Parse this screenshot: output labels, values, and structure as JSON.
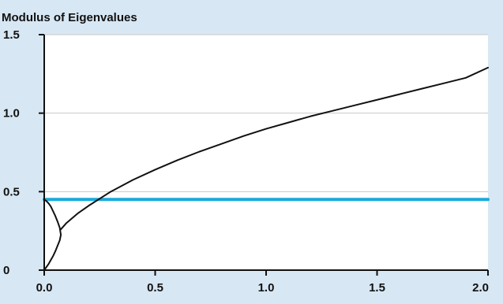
{
  "chart_data": {
    "type": "line",
    "title": "Modulus of Eigenvalues",
    "xlabel": "",
    "ylabel": "",
    "xlim": [
      0,
      2
    ],
    "ylim": [
      0,
      1.5
    ],
    "x_ticks": [
      {
        "value": 0,
        "label": "0.0"
      },
      {
        "value": 0.5,
        "label": "0.5"
      },
      {
        "value": 1.0,
        "label": "1.0"
      },
      {
        "value": 1.5,
        "label": "1.5"
      },
      {
        "value": 2.0,
        "label": "2.0"
      }
    ],
    "y_ticks": [
      {
        "value": 0,
        "label": "0"
      },
      {
        "value": 0.5,
        "label": "0.5"
      },
      {
        "value": 1.0,
        "label": "1.0"
      },
      {
        "value": 1.5,
        "label": "1.5"
      }
    ],
    "grid": {
      "horizontal": true,
      "vertical": false
    },
    "legend": "none",
    "colors": {
      "background": "#d7e7f4",
      "plot_area": "#ffffff",
      "curve": "#111111",
      "reference_line": "#1aa9db",
      "grid": "#c8c8c8"
    },
    "series": [
      {
        "color": "#1aa9db",
        "x": [
          0,
          2
        ],
        "y": [
          0.45,
          0.45
        ]
      },
      {
        "color": "#111111",
        "x": [
          0,
          0.01,
          0.02,
          0.03,
          0.04,
          0.05,
          0.06,
          0.07,
          0.075,
          0.07,
          0.06,
          0.05,
          0.04,
          0.03,
          0.02,
          0.01,
          0
        ],
        "y": [
          0.45,
          0.44,
          0.425,
          0.405,
          0.375,
          0.345,
          0.31,
          0.27,
          0.225,
          0.19,
          0.155,
          0.12,
          0.09,
          0.065,
          0.04,
          0.02,
          0
        ]
      },
      {
        "color": "#111111",
        "x": [
          0.075,
          0.1,
          0.15,
          0.2,
          0.25,
          0.3,
          0.4,
          0.5,
          0.6,
          0.7,
          0.8,
          0.9,
          1.0,
          1.1,
          1.2,
          1.3,
          1.4,
          1.5,
          1.6,
          1.7,
          1.8,
          1.9,
          2.0
        ],
        "y": [
          0.26,
          0.3,
          0.36,
          0.41,
          0.455,
          0.5,
          0.575,
          0.64,
          0.7,
          0.755,
          0.805,
          0.855,
          0.9,
          0.94,
          0.98,
          1.015,
          1.05,
          1.085,
          1.12,
          1.155,
          1.19,
          1.225,
          1.29
        ]
      }
    ]
  }
}
